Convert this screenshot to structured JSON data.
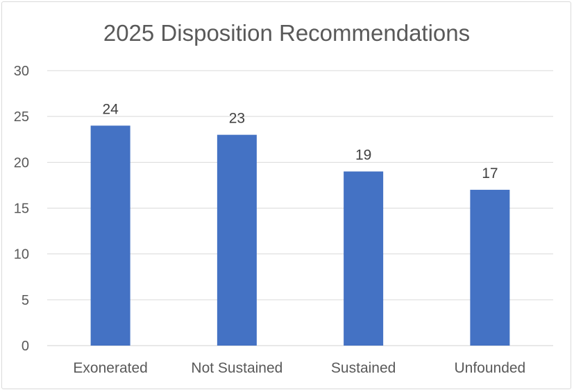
{
  "chart_data": {
    "type": "bar",
    "title": "2025 Disposition Recommendations",
    "categories": [
      "Exonerated",
      "Not Sustained",
      "Sustained",
      "Unfounded"
    ],
    "values": [
      24,
      23,
      19,
      17
    ],
    "ylim": [
      0,
      30
    ],
    "yticks": [
      0,
      5,
      10,
      15,
      20,
      25,
      30
    ],
    "xlabel": "",
    "ylabel": "",
    "grid": true,
    "data_labels": true,
    "legend": "none",
    "bar_color": "#4472C4"
  }
}
